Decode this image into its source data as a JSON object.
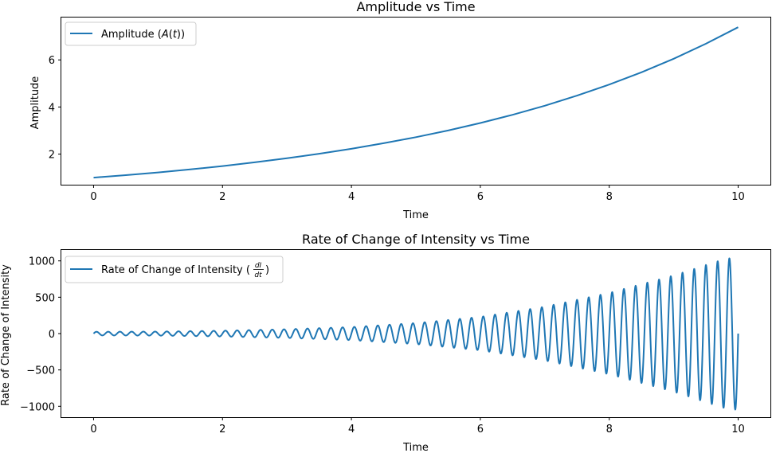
{
  "chart_data": [
    {
      "type": "line",
      "title": "Amplitude vs Time",
      "xlabel": "Time",
      "ylabel": "Amplitude",
      "xlim": [
        -0.5,
        10.5
      ],
      "ylim": [
        0.7,
        7.8
      ],
      "xticks": [
        0,
        2,
        4,
        6,
        8,
        10
      ],
      "yticks": [
        2,
        4,
        6
      ],
      "grid": false,
      "legend_position": "upper-left",
      "series": [
        {
          "name": "Amplitude (A(t))",
          "color": "#1f77b4",
          "x": [
            0,
            0.5,
            1,
            1.5,
            2,
            2.5,
            3,
            3.5,
            4,
            4.5,
            5,
            5.5,
            6,
            6.5,
            7,
            7.5,
            8,
            8.5,
            9,
            9.5,
            10
          ],
          "y": [
            1.0,
            1.105,
            1.221,
            1.35,
            1.492,
            1.649,
            1.822,
            2.014,
            2.226,
            2.46,
            2.718,
            3.004,
            3.32,
            3.669,
            4.055,
            4.482,
            4.953,
            5.474,
            6.05,
            6.686,
            7.389
          ]
        }
      ]
    },
    {
      "type": "line",
      "title": "Rate of Change of Intensity vs Time",
      "xlabel": "Time",
      "ylabel": "Rate of Change of Intensity",
      "xlim": [
        -0.5,
        10.5
      ],
      "ylim": [
        -1150,
        1150
      ],
      "xticks": [
        0,
        2,
        4,
        6,
        8,
        10
      ],
      "yticks": [
        -1000,
        -500,
        0,
        500,
        1000
      ],
      "grid": false,
      "legend_position": "upper-left",
      "series": [
        {
          "name": "Rate of Change of Intensity (dI/dt)",
          "color": "#1f77b4",
          "oscillation_cycles": 55,
          "x": [
            0,
            1,
            2,
            3,
            4,
            5,
            6,
            7,
            8,
            9,
            9.8,
            10
          ],
          "envelope": [
            25,
            28,
            40,
            60,
            90,
            145,
            230,
            370,
            560,
            800,
            1030,
            1050
          ]
        }
      ]
    }
  ]
}
